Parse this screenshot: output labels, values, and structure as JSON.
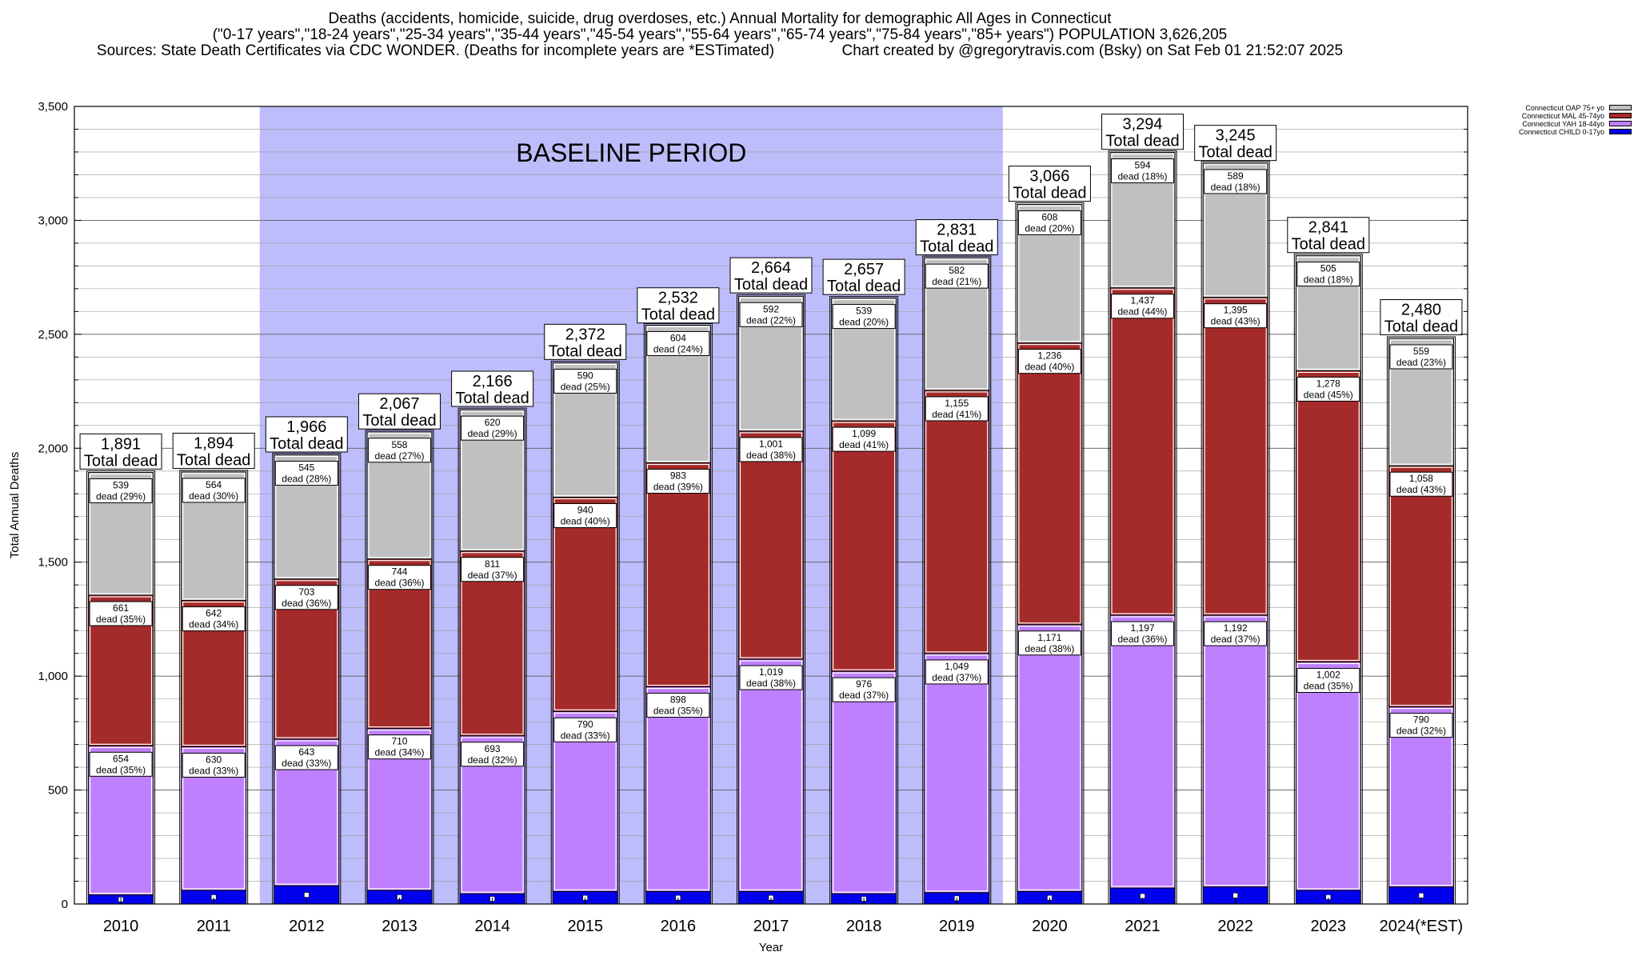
{
  "header": {
    "line1": "Deaths (accidents, homicide, suicide, drug overdoses, etc.) Annual Mortality for demographic All Ages in Connecticut",
    "line2": "(\"0-17 years\",\"18-24 years\",\"25-34 years\",\"35-44 years\",\"45-54 years\",\"55-64 years\",\"65-74 years\",\"75-84 years\",\"85+ years\") POPULATION 3,626,205",
    "line3": "Sources: State Death Certificates via CDC WONDER. (Deaths for incomplete years are *ESTimated)                Chart created by @gregorytravis.com (Bsky) on Sat Feb 01 21:52:07 2025"
  },
  "chart_data": {
    "type": "bar",
    "stacked": true,
    "xlabel": "Year",
    "ylabel": "Total Annual Deaths",
    "ylim": [
      0,
      3500
    ],
    "y_ticks": [
      "0",
      "500",
      "1,000",
      "1,500",
      "2,000",
      "2,500",
      "3,000",
      "3,500"
    ],
    "grid": true,
    "legend_position": "top-right",
    "annotation": "BASELINE PERIOD",
    "baseline_range": [
      "2012",
      "2019"
    ],
    "categories": [
      "2010",
      "2011",
      "2012",
      "2013",
      "2014",
      "2015",
      "2016",
      "2017",
      "2018",
      "2019",
      "2020",
      "2021",
      "2022",
      "2023",
      "2024(*EST)"
    ],
    "totals": [
      1891,
      1894,
      1966,
      2067,
      2166,
      2372,
      2532,
      2664,
      2657,
      2831,
      3066,
      3294,
      3245,
      2841,
      2480
    ],
    "total_labels": [
      "1,891",
      "1,894",
      "1,966",
      "2,067",
      "2,166",
      "2,372",
      "2,532",
      "2,664",
      "2,657",
      "2,831",
      "3,066",
      "3,294",
      "3,245",
      "2,841",
      "2,480"
    ],
    "total_suffix": "Total dead",
    "series": [
      {
        "name": "Connecticut CHILD 0-17yo",
        "color": "#0000ee",
        "values": [
          40,
          60,
          80,
          60,
          45,
          55,
          55,
          55,
          45,
          50,
          55,
          70,
          75,
          60,
          75
        ]
      },
      {
        "name": "Connecticut YAH 18-44yo",
        "color": "#bf80ff",
        "values": [
          654,
          630,
          643,
          710,
          693,
          790,
          898,
          1019,
          976,
          1049,
          1171,
          1197,
          1192,
          1002,
          790
        ],
        "labels": [
          "654",
          "630",
          "643",
          "710",
          "693",
          "790",
          "898",
          "1,019",
          "976",
          "1,049",
          "1,171",
          "1,197",
          "1,192",
          "1,002",
          "790"
        ],
        "pct": [
          "dead (35%)",
          "dead (33%)",
          "dead (33%)",
          "dead (34%)",
          "dead (32%)",
          "dead (33%)",
          "dead (35%)",
          "dead (38%)",
          "dead (37%)",
          "dead (37%)",
          "dead (38%)",
          "dead (36%)",
          "dead (37%)",
          "dead (35%)",
          "dead (32%)"
        ]
      },
      {
        "name": "Connecticut MAL 45-74yo",
        "color": "#a52a2a",
        "values": [
          661,
          642,
          703,
          744,
          811,
          940,
          983,
          1001,
          1099,
          1155,
          1236,
          1437,
          1395,
          1278,
          1058
        ],
        "labels": [
          "661",
          "642",
          "703",
          "744",
          "811",
          "940",
          "983",
          "1,001",
          "1,099",
          "1,155",
          "1,236",
          "1,437",
          "1,395",
          "1,278",
          "1,058"
        ],
        "pct": [
          "dead (35%)",
          "dead (34%)",
          "dead (36%)",
          "dead (36%)",
          "dead (37%)",
          "dead (40%)",
          "dead (39%)",
          "dead (38%)",
          "dead (41%)",
          "dead (41%)",
          "dead (40%)",
          "dead (44%)",
          "dead (43%)",
          "dead (45%)",
          "dead (43%)"
        ]
      },
      {
        "name": "Connecticut OAP 75+ yo",
        "color": "#c0c0c0",
        "values": [
          539,
          564,
          545,
          558,
          620,
          590,
          604,
          592,
          539,
          582,
          608,
          594,
          589,
          505,
          559
        ],
        "labels": [
          "539",
          "564",
          "545",
          "558",
          "620",
          "590",
          "604",
          "592",
          "539",
          "582",
          "608",
          "594",
          "589",
          "505",
          "559"
        ],
        "pct": [
          "dead (29%)",
          "dead (30%)",
          "dead (28%)",
          "dead (27%)",
          "dead (29%)",
          "dead (25%)",
          "dead (24%)",
          "dead (22%)",
          "dead (20%)",
          "dead (21%)",
          "dead (20%)",
          "dead (18%)",
          "dead (18%)",
          "dead (18%)",
          "dead (23%)"
        ]
      }
    ]
  }
}
